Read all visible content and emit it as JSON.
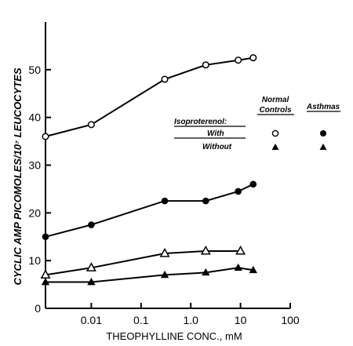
{
  "chart_data": {
    "type": "line",
    "title": "",
    "xlabel": "THEOPHYLLINE CONC., mM",
    "ylabel": "CYCLIC AMP PICOMOLES/10⁷ LEUCOCYTES",
    "xscale": "log",
    "xlim": [
      0.0012,
      100
    ],
    "ylim": [
      0,
      60
    ],
    "xticks": [
      {
        "value": 0.01,
        "label": "0.01"
      },
      {
        "value": 0.1,
        "label": "0.1"
      },
      {
        "value": 1,
        "label": "1.0"
      },
      {
        "value": 10,
        "label": "10"
      },
      {
        "value": 100,
        "label": "100"
      }
    ],
    "yticks": [
      {
        "value": 0,
        "label": "0"
      },
      {
        "value": 10,
        "label": "10"
      },
      {
        "value": 20,
        "label": "20"
      },
      {
        "value": 30,
        "label": "30"
      },
      {
        "value": 40,
        "label": "40"
      },
      {
        "value": 50,
        "label": "50"
      }
    ],
    "grid": false,
    "legend_position": "right",
    "legend": {
      "row_header": "Isoproterenol:",
      "row_with": "With",
      "row_without": "Without",
      "col_normal_line1": "Normal",
      "col_normal_line2": "Controls",
      "col_asthma": "Asthmas"
    },
    "series": [
      {
        "group": "normal",
        "isoproterenol": "with",
        "marker": "circle-open",
        "x": [
          0.0012,
          0.01,
          0.3,
          2,
          9,
          18
        ],
        "y": [
          36,
          38.5,
          48,
          51,
          52,
          52.5
        ]
      },
      {
        "group": "asthma",
        "isoproterenol": "with",
        "marker": "circle-filled",
        "x": [
          0.0012,
          0.01,
          0.3,
          2,
          9,
          18
        ],
        "y": [
          15,
          17.5,
          22.5,
          22.5,
          24.5,
          26
        ]
      },
      {
        "group": "normal",
        "isoproterenol": "without",
        "marker": "triangle-open",
        "x": [
          0.0012,
          0.01,
          0.3,
          2,
          10
        ],
        "y": [
          7,
          8.5,
          11.5,
          12,
          12
        ]
      },
      {
        "group": "asthma",
        "isoproterenol": "without",
        "marker": "triangle-filled",
        "x": [
          0.0012,
          0.01,
          0.3,
          2,
          9,
          18
        ],
        "y": [
          5.5,
          5.5,
          7,
          7.5,
          8.5,
          8
        ]
      }
    ]
  }
}
